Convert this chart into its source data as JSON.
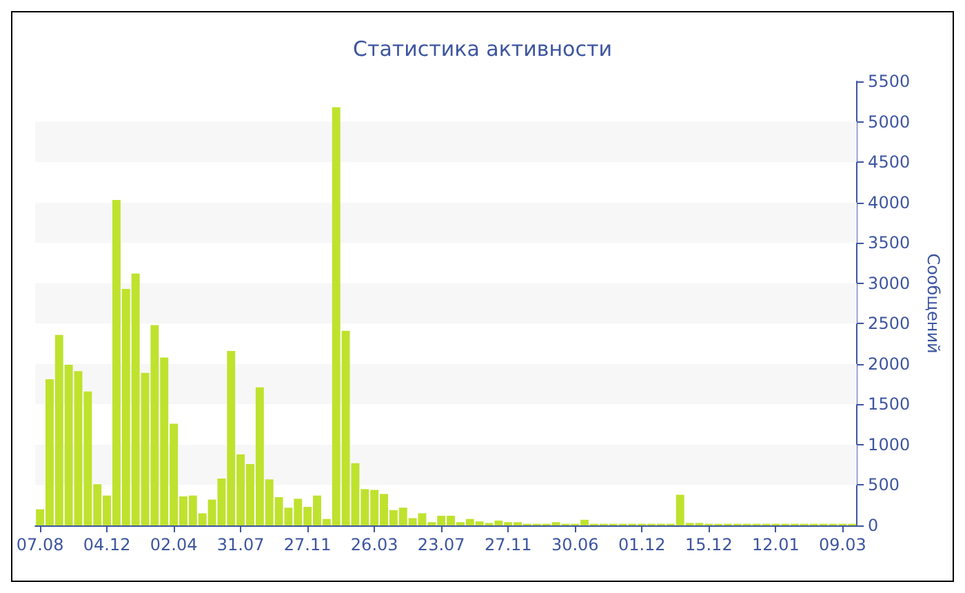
{
  "chart_data": {
    "type": "bar",
    "title": "Статистика активности",
    "ylabel": "Сообщений",
    "categories": [
      "07.08",
      null,
      null,
      null,
      null,
      null,
      null,
      "04.12",
      null,
      null,
      null,
      null,
      null,
      null,
      "02.04",
      null,
      null,
      null,
      null,
      null,
      null,
      "31.07",
      null,
      null,
      null,
      null,
      null,
      null,
      "27.11",
      null,
      null,
      null,
      null,
      null,
      null,
      "26.03",
      null,
      null,
      null,
      null,
      null,
      null,
      "23.07",
      null,
      null,
      null,
      null,
      null,
      null,
      "27.11",
      null,
      null,
      null,
      null,
      null,
      null,
      "30.06",
      null,
      null,
      null,
      null,
      null,
      null,
      "01.12",
      null,
      null,
      null,
      null,
      null,
      null,
      "15.12",
      null,
      null,
      null,
      null,
      null,
      null,
      "12.01",
      null,
      null,
      null,
      null,
      null,
      null,
      "09.03",
      null
    ],
    "values": [
      200,
      1810,
      2360,
      1990,
      1910,
      1660,
      510,
      370,
      4030,
      2930,
      3120,
      1890,
      2480,
      2080,
      1260,
      360,
      370,
      150,
      320,
      580,
      2160,
      880,
      760,
      1710,
      570,
      350,
      220,
      330,
      230,
      370,
      80,
      5180,
      2410,
      770,
      450,
      440,
      390,
      190,
      220,
      90,
      150,
      40,
      120,
      120,
      40,
      80,
      50,
      30,
      60,
      40,
      40,
      20,
      20,
      20,
      40,
      20,
      20,
      70,
      20,
      20,
      20,
      20,
      20,
      20,
      20,
      20,
      20,
      380,
      30,
      30,
      20,
      20,
      20,
      20,
      20,
      20,
      20,
      20,
      20,
      20,
      20,
      20,
      20,
      20,
      20,
      20
    ],
    "color": "#bfe22e",
    "ylim": [
      0,
      5500
    ],
    "yticks": [
      0,
      500,
      1000,
      1500,
      2000,
      2500,
      3000,
      3500,
      4000,
      4500,
      5000,
      5500
    ],
    "bands": [
      {
        "axis": "y",
        "from": 500,
        "to": 1000,
        "color": "#f7f7f7"
      },
      {
        "axis": "y",
        "from": 1500,
        "to": 2000,
        "color": "#f7f7f7"
      },
      {
        "axis": "y",
        "from": 2500,
        "to": 3000,
        "color": "#f7f7f7"
      },
      {
        "axis": "y",
        "from": 3500,
        "to": 4000,
        "color": "#f7f7f7"
      },
      {
        "axis": "y",
        "from": 4500,
        "to": 5000,
        "color": "#f7f7f7"
      }
    ]
  }
}
